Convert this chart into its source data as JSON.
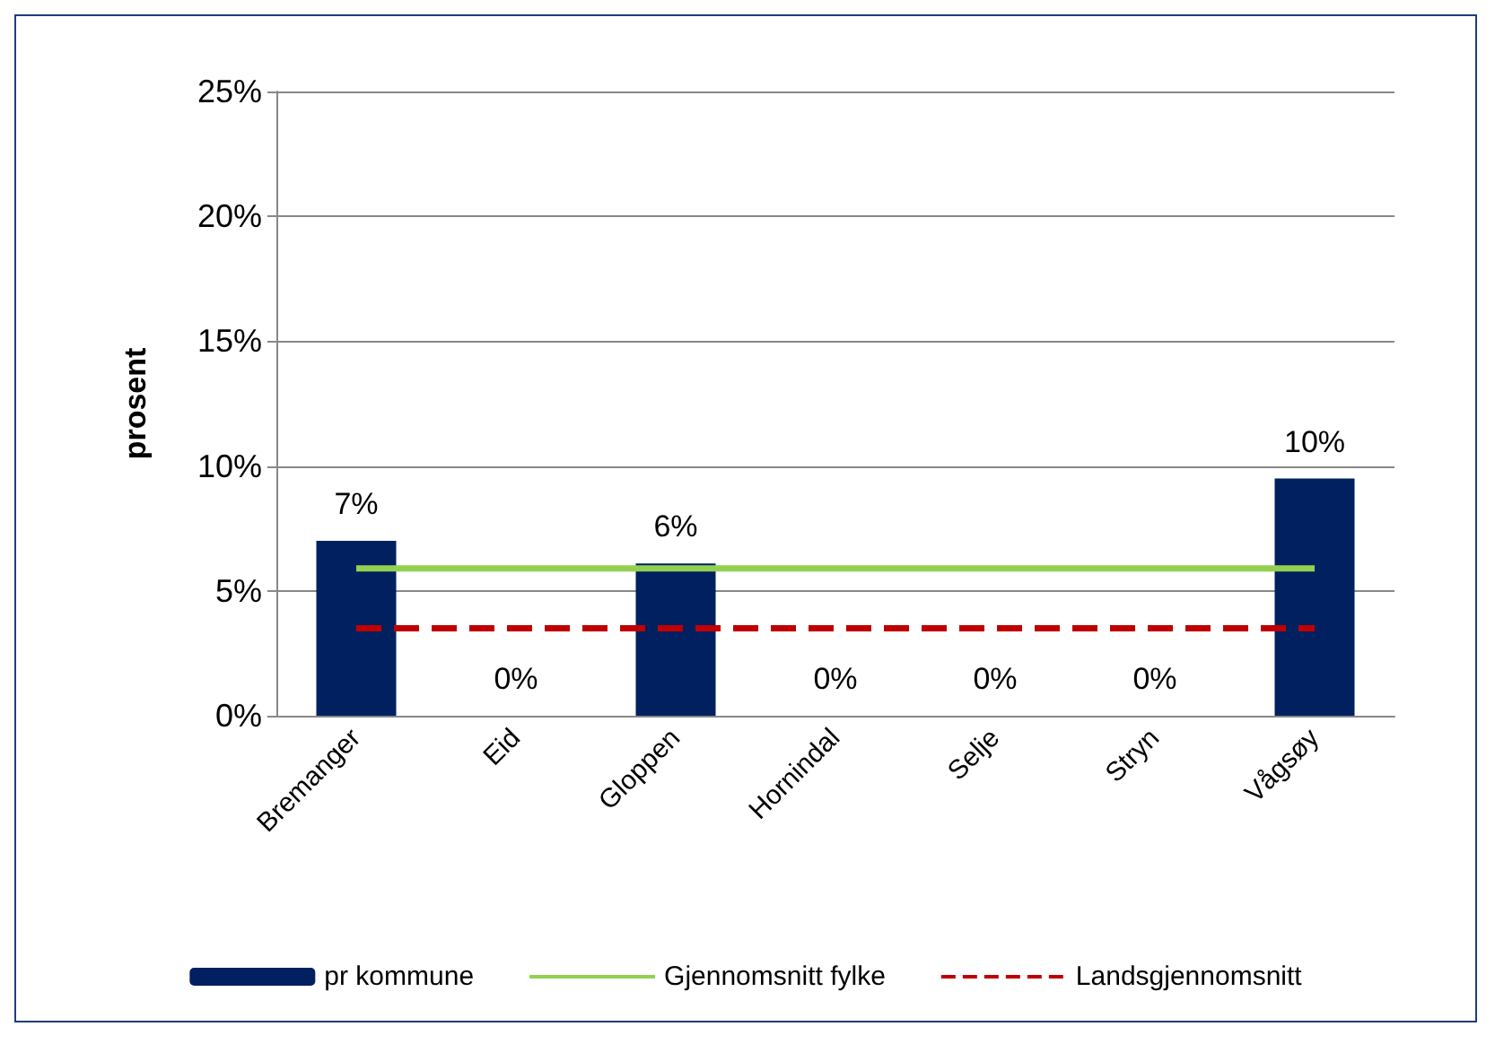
{
  "chart_data": {
    "type": "bar",
    "ylabel": "prosent",
    "categories": [
      "Bremanger",
      "Eid",
      "Gloppen",
      "Hornindal",
      "Selje",
      "Stryn",
      "Vågsøy"
    ],
    "series": [
      {
        "name": "pr kommune",
        "color": "#002060",
        "values": [
          7,
          0,
          6.1,
          0,
          0,
          0,
          9.5
        ],
        "value_labels": [
          "7%",
          "0%",
          "6%",
          "0%",
          "0%",
          "0%",
          "10%"
        ]
      },
      {
        "name": "Gjennomsnitt fylke",
        "type": "line",
        "color": "#92d050",
        "values": [
          5.9,
          5.9,
          5.9,
          5.9,
          5.9,
          5.9,
          5.9
        ],
        "line_style": "solid"
      },
      {
        "name": "Landsgjennomsnitt",
        "type": "line",
        "color": "#c00000",
        "values": [
          3.5,
          3.5,
          3.5,
          3.5,
          3.5,
          3.5,
          3.5
        ],
        "line_style": "dashed"
      }
    ],
    "ylim": [
      0,
      25
    ],
    "yticks": [
      {
        "value": 0,
        "label": "0%"
      },
      {
        "value": 5,
        "label": "5%"
      },
      {
        "value": 10,
        "label": "10%"
      },
      {
        "value": 15,
        "label": "15%"
      },
      {
        "value": 20,
        "label": "20%"
      },
      {
        "value": 25,
        "label": "25%"
      }
    ],
    "grid": "y",
    "legend": "bottom",
    "marker": "none"
  }
}
